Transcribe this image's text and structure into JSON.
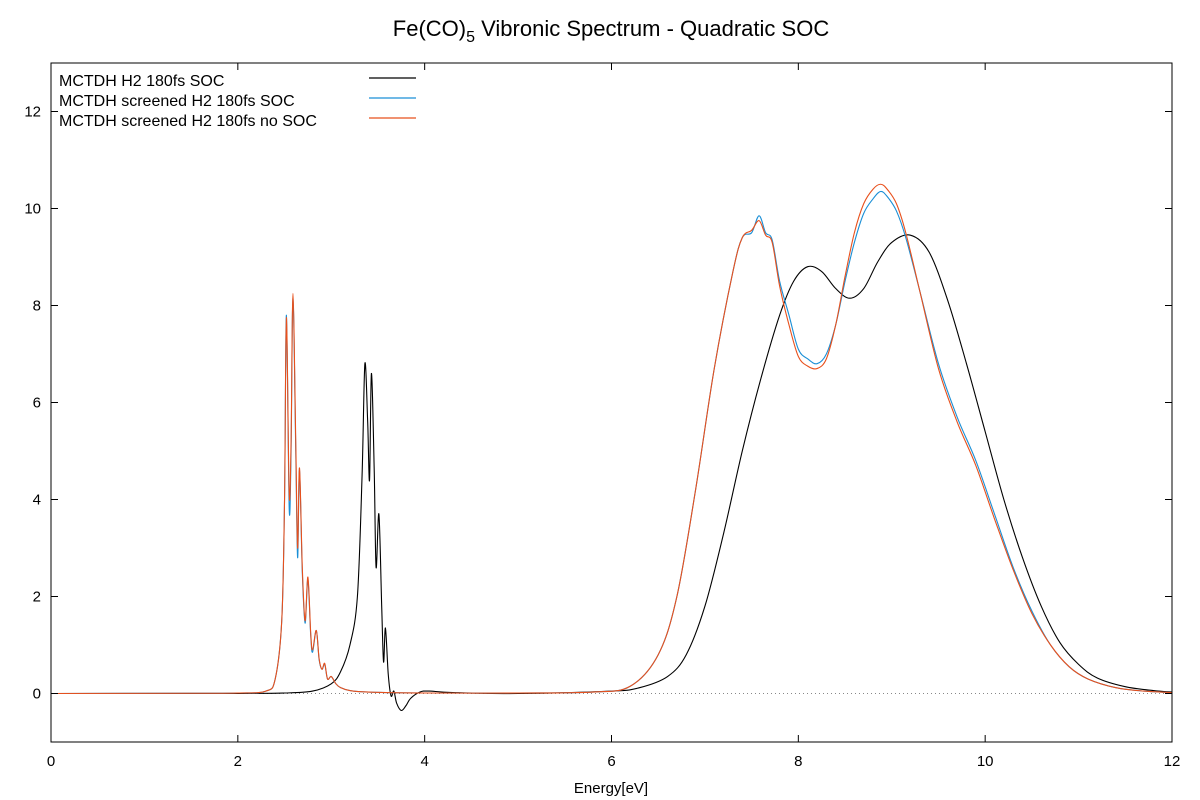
{
  "chart_data": {
    "type": "line",
    "title": "Fe(CO)",
    "title_subscript": "5",
    "title_suffix": " Vibronic Spectrum - Quadratic SOC",
    "xlabel": "Energy[eV]",
    "ylabel": "",
    "xlim": [
      0,
      12
    ],
    "ylim": [
      -1,
      13
    ],
    "x_ticks": [
      "0",
      "2",
      "4",
      "6",
      "8",
      "10",
      "12"
    ],
    "y_ticks": [
      "0",
      "2",
      "4",
      "6",
      "8",
      "10",
      "12"
    ],
    "grid": false,
    "zero_line": "dotted",
    "legend_position": "top-left",
    "series": [
      {
        "name": "MCTDH H2 180fs SOC",
        "color": "#000000",
        "points": [
          [
            0,
            0
          ],
          [
            2.0,
            0.002
          ],
          [
            2.5,
            0.01
          ],
          [
            2.8,
            0.05
          ],
          [
            3.0,
            0.2
          ],
          [
            3.1,
            0.45
          ],
          [
            3.2,
            1.0
          ],
          [
            3.28,
            2.0
          ],
          [
            3.33,
            4.5
          ],
          [
            3.36,
            6.8
          ],
          [
            3.39,
            5.6
          ],
          [
            3.41,
            4.4
          ],
          [
            3.43,
            6.6
          ],
          [
            3.46,
            4.6
          ],
          [
            3.48,
            2.6
          ],
          [
            3.51,
            3.7
          ],
          [
            3.54,
            1.8
          ],
          [
            3.56,
            0.65
          ],
          [
            3.58,
            1.35
          ],
          [
            3.61,
            0.4
          ],
          [
            3.64,
            -0.05
          ],
          [
            3.67,
            0.05
          ],
          [
            3.7,
            -0.2
          ],
          [
            3.75,
            -0.35
          ],
          [
            3.8,
            -0.25
          ],
          [
            3.85,
            -0.1
          ],
          [
            3.95,
            0.03
          ],
          [
            4.05,
            0.05
          ],
          [
            4.3,
            0.02
          ],
          [
            5.0,
            0.0
          ],
          [
            6.0,
            0.05
          ],
          [
            6.3,
            0.12
          ],
          [
            6.6,
            0.35
          ],
          [
            6.8,
            0.8
          ],
          [
            7.0,
            1.8
          ],
          [
            7.2,
            3.3
          ],
          [
            7.4,
            5.0
          ],
          [
            7.6,
            6.5
          ],
          [
            7.8,
            7.8
          ],
          [
            7.95,
            8.5
          ],
          [
            8.1,
            8.8
          ],
          [
            8.25,
            8.7
          ],
          [
            8.4,
            8.35
          ],
          [
            8.55,
            8.15
          ],
          [
            8.7,
            8.35
          ],
          [
            8.85,
            8.9
          ],
          [
            9.0,
            9.3
          ],
          [
            9.2,
            9.45
          ],
          [
            9.4,
            9.1
          ],
          [
            9.6,
            8.1
          ],
          [
            9.8,
            6.8
          ],
          [
            10.0,
            5.4
          ],
          [
            10.2,
            4.0
          ],
          [
            10.4,
            2.8
          ],
          [
            10.6,
            1.8
          ],
          [
            10.8,
            1.05
          ],
          [
            11.0,
            0.6
          ],
          [
            11.2,
            0.32
          ],
          [
            11.5,
            0.14
          ],
          [
            11.8,
            0.06
          ],
          [
            12.0,
            0.03
          ]
        ]
      },
      {
        "name": "MCTDH screened H2 180fs SOC",
        "color": "#1a8fd6",
        "points": [
          [
            0,
            0
          ],
          [
            1.5,
            0.005
          ],
          [
            2.0,
            0.01
          ],
          [
            2.3,
            0.05
          ],
          [
            2.4,
            0.3
          ],
          [
            2.47,
            1.5
          ],
          [
            2.5,
            4.0
          ],
          [
            2.52,
            7.8
          ],
          [
            2.55,
            3.8
          ],
          [
            2.57,
            5.0
          ],
          [
            2.59,
            8.2
          ],
          [
            2.62,
            5.0
          ],
          [
            2.64,
            2.8
          ],
          [
            2.66,
            4.6
          ],
          [
            2.69,
            2.5
          ],
          [
            2.72,
            1.45
          ],
          [
            2.75,
            2.35
          ],
          [
            2.78,
            1.2
          ],
          [
            2.8,
            0.85
          ],
          [
            2.84,
            1.3
          ],
          [
            2.87,
            0.7
          ],
          [
            2.9,
            0.5
          ],
          [
            2.93,
            0.6
          ],
          [
            2.96,
            0.3
          ],
          [
            3.0,
            0.35
          ],
          [
            3.05,
            0.2
          ],
          [
            3.1,
            0.12
          ],
          [
            3.2,
            0.06
          ],
          [
            3.4,
            0.03
          ],
          [
            4.0,
            0.01
          ],
          [
            5.0,
            0.01
          ],
          [
            5.8,
            0.03
          ],
          [
            6.2,
            0.15
          ],
          [
            6.5,
            0.8
          ],
          [
            6.7,
            2.0
          ],
          [
            6.9,
            4.2
          ],
          [
            7.1,
            6.7
          ],
          [
            7.3,
            8.7
          ],
          [
            7.4,
            9.4
          ],
          [
            7.5,
            9.5
          ],
          [
            7.58,
            9.85
          ],
          [
            7.65,
            9.5
          ],
          [
            7.72,
            9.35
          ],
          [
            7.8,
            8.5
          ],
          [
            7.9,
            7.8
          ],
          [
            8.0,
            7.1
          ],
          [
            8.1,
            6.9
          ],
          [
            8.2,
            6.8
          ],
          [
            8.3,
            7.0
          ],
          [
            8.4,
            7.6
          ],
          [
            8.5,
            8.5
          ],
          [
            8.6,
            9.3
          ],
          [
            8.7,
            9.9
          ],
          [
            8.8,
            10.2
          ],
          [
            8.88,
            10.35
          ],
          [
            8.95,
            10.25
          ],
          [
            9.05,
            9.95
          ],
          [
            9.15,
            9.4
          ],
          [
            9.3,
            8.3
          ],
          [
            9.5,
            6.8
          ],
          [
            9.7,
            5.7
          ],
          [
            9.9,
            4.8
          ],
          [
            10.1,
            3.7
          ],
          [
            10.3,
            2.6
          ],
          [
            10.5,
            1.7
          ],
          [
            10.7,
            1.0
          ],
          [
            10.9,
            0.55
          ],
          [
            11.1,
            0.3
          ],
          [
            11.4,
            0.12
          ],
          [
            11.7,
            0.05
          ],
          [
            12.0,
            0.02
          ]
        ]
      },
      {
        "name": "MCTDH screened H2 180fs no SOC",
        "color": "#e8501c",
        "points": [
          [
            0,
            0
          ],
          [
            1.5,
            0.005
          ],
          [
            2.0,
            0.01
          ],
          [
            2.3,
            0.05
          ],
          [
            2.4,
            0.3
          ],
          [
            2.47,
            1.5
          ],
          [
            2.5,
            4.0
          ],
          [
            2.52,
            7.75
          ],
          [
            2.55,
            4.1
          ],
          [
            2.57,
            5.2
          ],
          [
            2.59,
            8.25
          ],
          [
            2.62,
            5.2
          ],
          [
            2.64,
            3.0
          ],
          [
            2.66,
            4.65
          ],
          [
            2.69,
            2.6
          ],
          [
            2.72,
            1.5
          ],
          [
            2.75,
            2.4
          ],
          [
            2.78,
            1.25
          ],
          [
            2.8,
            0.9
          ],
          [
            2.84,
            1.3
          ],
          [
            2.87,
            0.72
          ],
          [
            2.9,
            0.5
          ],
          [
            2.93,
            0.62
          ],
          [
            2.96,
            0.3
          ],
          [
            3.0,
            0.35
          ],
          [
            3.05,
            0.2
          ],
          [
            3.1,
            0.12
          ],
          [
            3.2,
            0.06
          ],
          [
            3.4,
            0.03
          ],
          [
            4.0,
            0.01
          ],
          [
            5.0,
            0.01
          ],
          [
            5.8,
            0.03
          ],
          [
            6.2,
            0.15
          ],
          [
            6.5,
            0.8
          ],
          [
            6.7,
            2.0
          ],
          [
            6.9,
            4.2
          ],
          [
            7.1,
            6.7
          ],
          [
            7.3,
            8.7
          ],
          [
            7.4,
            9.4
          ],
          [
            7.5,
            9.55
          ],
          [
            7.58,
            9.75
          ],
          [
            7.65,
            9.45
          ],
          [
            7.72,
            9.3
          ],
          [
            7.8,
            8.4
          ],
          [
            7.9,
            7.6
          ],
          [
            8.0,
            6.95
          ],
          [
            8.1,
            6.75
          ],
          [
            8.2,
            6.7
          ],
          [
            8.3,
            6.9
          ],
          [
            8.4,
            7.6
          ],
          [
            8.5,
            8.6
          ],
          [
            8.6,
            9.5
          ],
          [
            8.7,
            10.1
          ],
          [
            8.8,
            10.4
          ],
          [
            8.88,
            10.5
          ],
          [
            8.95,
            10.4
          ],
          [
            9.05,
            10.1
          ],
          [
            9.15,
            9.5
          ],
          [
            9.3,
            8.3
          ],
          [
            9.5,
            6.7
          ],
          [
            9.7,
            5.6
          ],
          [
            9.9,
            4.7
          ],
          [
            10.1,
            3.6
          ],
          [
            10.3,
            2.55
          ],
          [
            10.5,
            1.65
          ],
          [
            10.7,
            1.0
          ],
          [
            10.9,
            0.55
          ],
          [
            11.1,
            0.3
          ],
          [
            11.4,
            0.12
          ],
          [
            11.7,
            0.05
          ],
          [
            12.0,
            0.02
          ]
        ]
      }
    ]
  }
}
